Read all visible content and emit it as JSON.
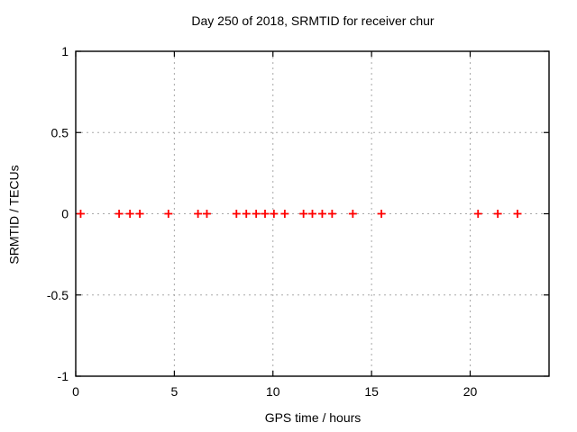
{
  "chart_data": {
    "type": "scatter",
    "title": "Day 250 of 2018, SRMTID for receiver chur",
    "xlabel": "GPS time / hours",
    "ylabel": "SRMTID / TECUs",
    "xlim": [
      0,
      24
    ],
    "ylim": [
      -1,
      1
    ],
    "x_ticks": [
      0,
      5,
      10,
      15,
      20
    ],
    "x_tick_labels": [
      "0",
      "5",
      "10",
      "15",
      "20"
    ],
    "y_ticks": [
      -1,
      -0.5,
      0,
      0.5,
      1
    ],
    "y_tick_labels": [
      "-1",
      "-0.5",
      "0",
      "0.5",
      "1"
    ],
    "grid": true,
    "grid_style": "dotted",
    "legend": false,
    "series": [
      {
        "name": "SRMTID",
        "marker": "plus",
        "color": "#ff0000",
        "x": [
          0.25,
          2.2,
          2.75,
          3.25,
          4.7,
          6.2,
          6.65,
          8.15,
          8.65,
          9.15,
          9.6,
          10.05,
          10.6,
          11.55,
          12.0,
          12.5,
          13.0,
          14.05,
          15.5,
          20.4,
          21.4,
          22.4
        ],
        "y": [
          0,
          0,
          0,
          0,
          0,
          0,
          0,
          0,
          0,
          0,
          0,
          0,
          0,
          0,
          0,
          0,
          0,
          0,
          0,
          0,
          0,
          0
        ]
      }
    ],
    "colors": {
      "background": "#ffffff",
      "marker": "#ff0000",
      "grid": "#a8a8a8",
      "axis": "#000000",
      "text": "#000000"
    }
  }
}
